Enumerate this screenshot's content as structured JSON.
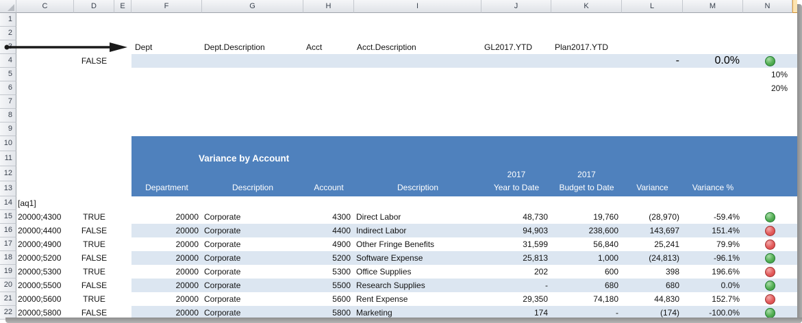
{
  "grid": {
    "column_headers": [
      "C",
      "D",
      "E",
      "F",
      "G",
      "H",
      "I",
      "J",
      "K",
      "L",
      "M",
      "N"
    ],
    "row_numbers": [
      "1",
      "2",
      "3",
      "4",
      "5",
      "6",
      "7",
      "8",
      "9",
      "10",
      "11",
      "12",
      "13",
      "14",
      "15",
      "16",
      "17",
      "18",
      "19",
      "20",
      "21",
      "22"
    ]
  },
  "formula_row": {
    "dept_label": "Dept",
    "dept_description_label": "Dept.Description",
    "acct_label": "Acct",
    "acct_description_label": "Acct.Description",
    "gl_ytd_label": "GL2017.YTD",
    "plan_ytd_label": "Plan2017.YTD"
  },
  "parameter_row": {
    "flag": "FALSE",
    "variance_value": "-",
    "variance_pct": "0.0%",
    "indicator": "green"
  },
  "thresholds": {
    "low": "10%",
    "high": "20%"
  },
  "query_marker": "[aq1]",
  "report": {
    "title": "Variance by Account",
    "column_headers": [
      {
        "line1": "",
        "line2": "Department"
      },
      {
        "line1": "",
        "line2": "Description"
      },
      {
        "line1": "",
        "line2": "Account"
      },
      {
        "line1": "",
        "line2": "Description"
      },
      {
        "line1": "2017",
        "line2": "Year to Date"
      },
      {
        "line1": "2017",
        "line2": "Budget to Date"
      },
      {
        "line1": "",
        "line2": "Variance"
      },
      {
        "line1": "",
        "line2": "Variance %"
      },
      {
        "line1": "",
        "line2": ""
      }
    ],
    "rows": [
      {
        "key": "20000;4300",
        "flag": "TRUE",
        "dept": "20000",
        "dept_description": "Corporate",
        "account": "4300",
        "account_description": "Direct Labor",
        "year_to_date": "48,730",
        "budget_to_date": "19,760",
        "variance": "(28,970)",
        "variance_pct": "-59.4%",
        "indicator": "green",
        "shaded": false
      },
      {
        "key": "20000;4400",
        "flag": "FALSE",
        "dept": "20000",
        "dept_description": "Corporate",
        "account": "4400",
        "account_description": "Indirect Labor",
        "year_to_date": "94,903",
        "budget_to_date": "238,600",
        "variance": "143,697",
        "variance_pct": "151.4%",
        "indicator": "red",
        "shaded": true
      },
      {
        "key": "20000;4900",
        "flag": "TRUE",
        "dept": "20000",
        "dept_description": "Corporate",
        "account": "4900",
        "account_description": "Other Fringe Benefits",
        "year_to_date": "31,599",
        "budget_to_date": "56,840",
        "variance": "25,241",
        "variance_pct": "79.9%",
        "indicator": "red",
        "shaded": false
      },
      {
        "key": "20000;5200",
        "flag": "FALSE",
        "dept": "20000",
        "dept_description": "Corporate",
        "account": "5200",
        "account_description": "Software Expense",
        "year_to_date": "25,813",
        "budget_to_date": "1,000",
        "variance": "(24,813)",
        "variance_pct": "-96.1%",
        "indicator": "green",
        "shaded": true
      },
      {
        "key": "20000;5300",
        "flag": "TRUE",
        "dept": "20000",
        "dept_description": "Corporate",
        "account": "5300",
        "account_description": "Office Supplies",
        "year_to_date": "202",
        "budget_to_date": "600",
        "variance": "398",
        "variance_pct": "196.6%",
        "indicator": "red",
        "shaded": false
      },
      {
        "key": "20000;5500",
        "flag": "FALSE",
        "dept": "20000",
        "dept_description": "Corporate",
        "account": "5500",
        "account_description": "Research Supplies",
        "year_to_date": "-",
        "budget_to_date": "680",
        "variance": "680",
        "variance_pct": "0.0%",
        "indicator": "green",
        "shaded": true
      },
      {
        "key": "20000;5600",
        "flag": "TRUE",
        "dept": "20000",
        "dept_description": "Corporate",
        "account": "5600",
        "account_description": "Rent Expense",
        "year_to_date": "29,350",
        "budget_to_date": "74,180",
        "variance": "44,830",
        "variance_pct": "152.7%",
        "indicator": "red",
        "shaded": false
      },
      {
        "key": "20000;5800",
        "flag": "FALSE",
        "dept": "20000",
        "dept_description": "Corporate",
        "account": "5800",
        "account_description": "Marketing",
        "year_to_date": "174",
        "budget_to_date": "-",
        "variance": "(174)",
        "variance_pct": "-100.0%",
        "indicator": "green",
        "shaded": true
      }
    ]
  },
  "colors": {
    "report_header_blue": "#4F81BD",
    "band_light_blue": "#DCE6F1",
    "indicator_green": "#4CAF50",
    "indicator_red": "#DD5454",
    "header_gray": "#E4E7EB",
    "shadow_gray": "#8E8E8E",
    "selected_header_amber": "#E8A23C"
  }
}
